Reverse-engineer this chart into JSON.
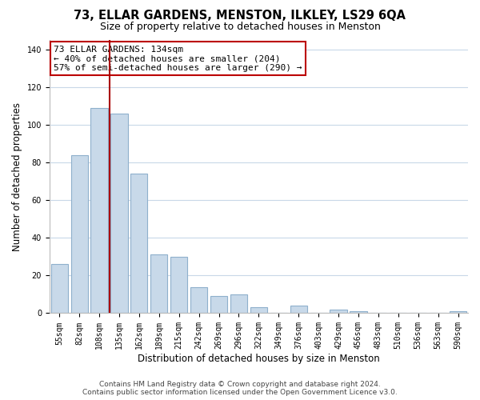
{
  "title": "73, ELLAR GARDENS, MENSTON, ILKLEY, LS29 6QA",
  "subtitle": "Size of property relative to detached houses in Menston",
  "xlabel": "Distribution of detached houses by size in Menston",
  "ylabel": "Number of detached properties",
  "categories": [
    "55sqm",
    "82sqm",
    "108sqm",
    "135sqm",
    "162sqm",
    "189sqm",
    "215sqm",
    "242sqm",
    "269sqm",
    "296sqm",
    "322sqm",
    "349sqm",
    "376sqm",
    "403sqm",
    "429sqm",
    "456sqm",
    "483sqm",
    "510sqm",
    "536sqm",
    "563sqm",
    "590sqm"
  ],
  "values": [
    26,
    84,
    109,
    106,
    74,
    31,
    30,
    14,
    9,
    10,
    3,
    0,
    4,
    0,
    2,
    1,
    0,
    0,
    0,
    0,
    1
  ],
  "bar_color": "#c8d9e9",
  "bar_edge_color": "#8fb0cc",
  "marker_label_line1": "73 ELLAR GARDENS: 134sqm",
  "marker_label_line2": "← 40% of detached houses are smaller (204)",
  "marker_label_line3": "57% of semi-detached houses are larger (290) →",
  "marker_color": "#aa0000",
  "annotation_box_edge": "#bb0000",
  "ylim": [
    0,
    145
  ],
  "yticks": [
    0,
    20,
    40,
    60,
    80,
    100,
    120,
    140
  ],
  "footer_line1": "Contains HM Land Registry data © Crown copyright and database right 2024.",
  "footer_line2": "Contains public sector information licensed under the Open Government Licence v3.0.",
  "bg_color": "#ffffff",
  "grid_color": "#c8d8e8",
  "title_fontsize": 10.5,
  "subtitle_fontsize": 9,
  "axis_label_fontsize": 8.5,
  "tick_fontsize": 7,
  "footer_fontsize": 6.5,
  "annotation_fontsize": 8
}
